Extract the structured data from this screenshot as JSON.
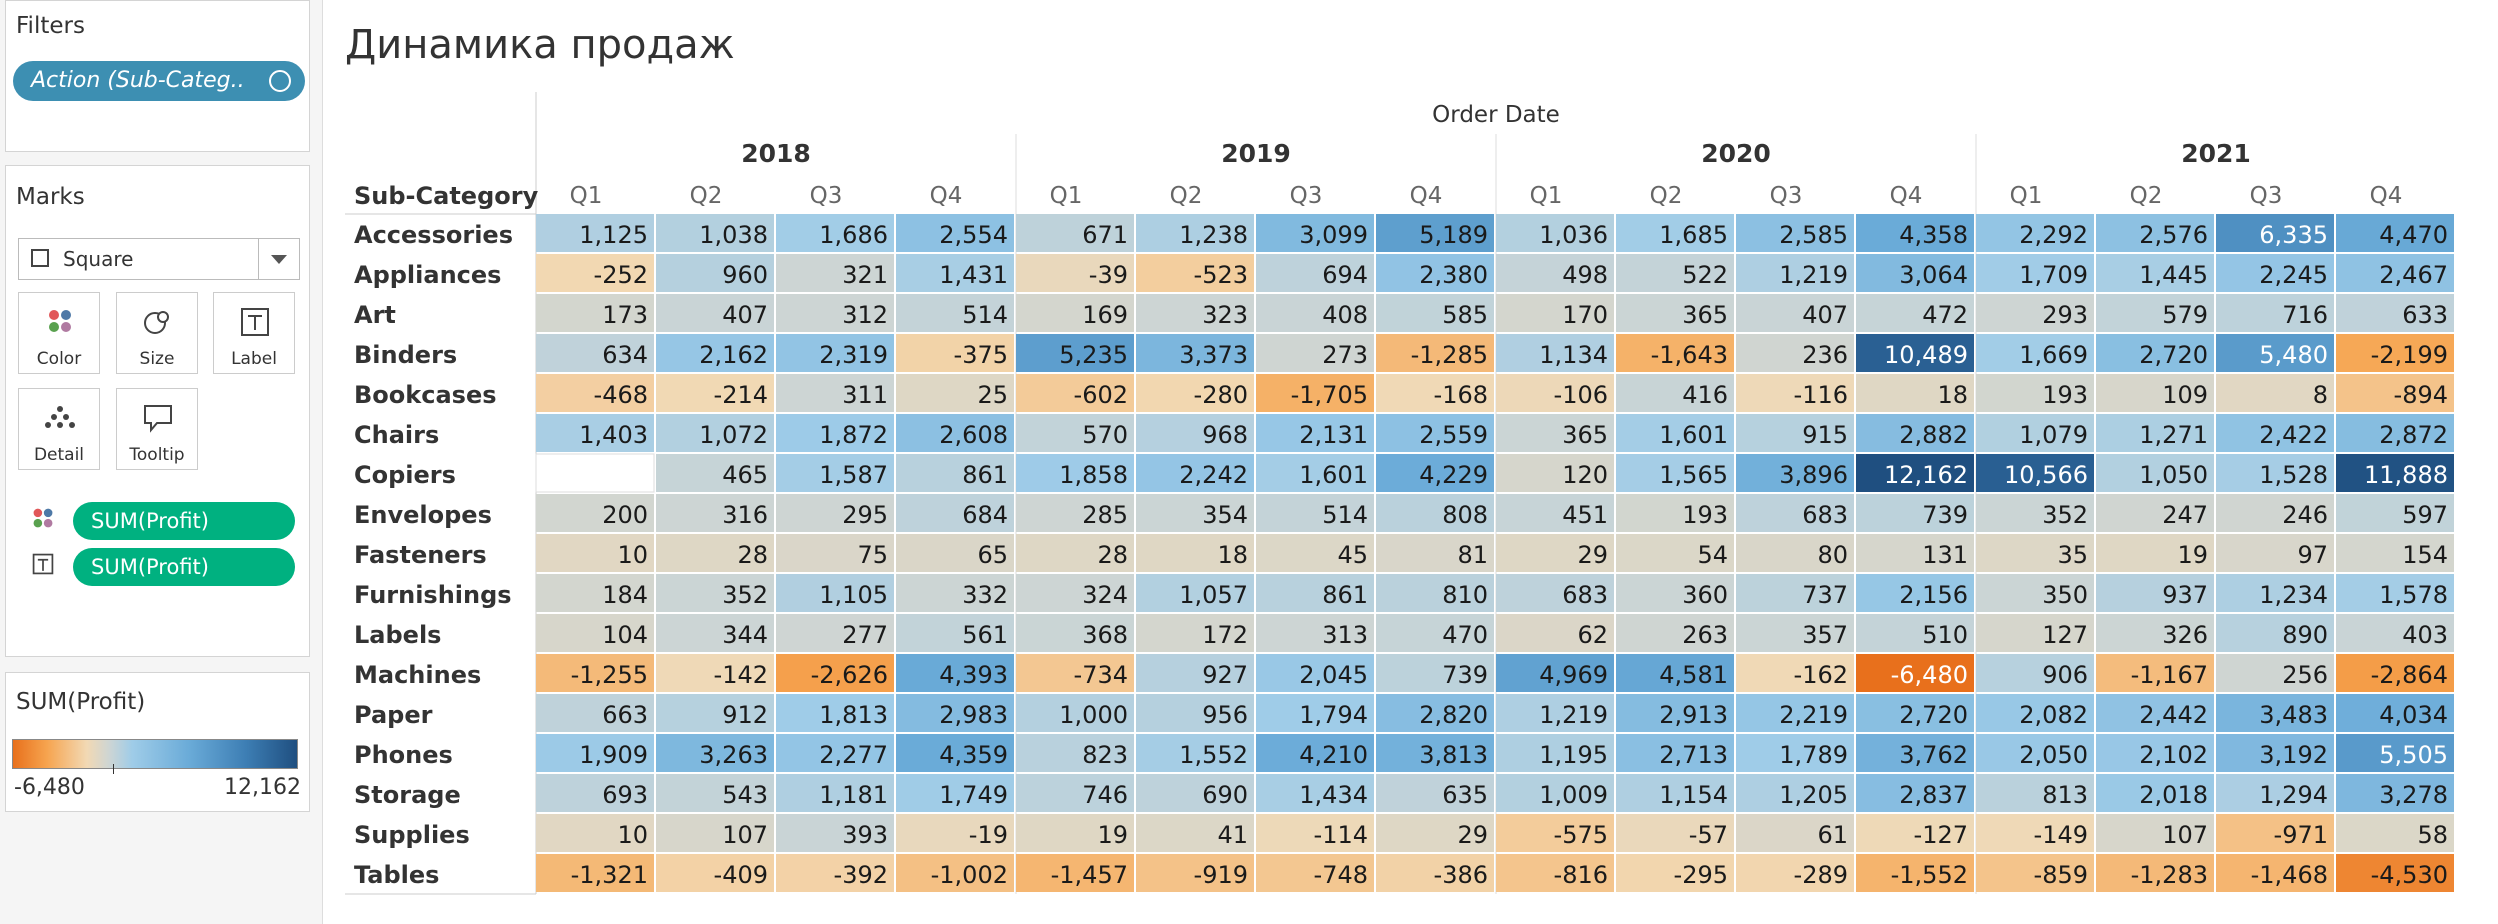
{
  "filters": {
    "title": "Filters",
    "pill": "Action (Sub-Categ.."
  },
  "marks": {
    "title": "Marks",
    "mark_type": "Square",
    "buttons": [
      "Color",
      "Size",
      "Label",
      "Detail",
      "Tooltip"
    ],
    "fields": [
      "SUM(Profit)",
      "SUM(Profit)"
    ]
  },
  "legend": {
    "title": "SUM(Profit)",
    "min": "-6,480",
    "max": "12,162",
    "colors": [
      "#e8701c",
      "#f6a44f",
      "#f2d9b4",
      "#cdd5d4",
      "#9fcce8",
      "#6aabd8",
      "#3d7eb4",
      "#1f4f80"
    ]
  },
  "sheet": {
    "title": "Динамика продаж"
  },
  "chart_data": {
    "type": "heatmap",
    "column_header": "Order Date",
    "row_header": "Sub-Category",
    "years": [
      "2018",
      "2019",
      "2020",
      "2021"
    ],
    "quarters": [
      "Q1",
      "Q2",
      "Q3",
      "Q4"
    ],
    "rows": [
      "Accessories",
      "Appliances",
      "Art",
      "Binders",
      "Bookcases",
      "Chairs",
      "Copiers",
      "Envelopes",
      "Fasteners",
      "Furnishings",
      "Labels",
      "Machines",
      "Paper",
      "Phones",
      "Storage",
      "Supplies",
      "Tables"
    ],
    "values": [
      [
        1125,
        1038,
        1686,
        2554,
        671,
        1238,
        3099,
        5189,
        1036,
        1685,
        2585,
        4358,
        2292,
        2576,
        6335,
        4470
      ],
      [
        -252,
        960,
        321,
        1431,
        -39,
        -523,
        694,
        2380,
        498,
        522,
        1219,
        3064,
        1709,
        1445,
        2245,
        2467
      ],
      [
        173,
        407,
        312,
        514,
        169,
        323,
        408,
        585,
        170,
        365,
        407,
        472,
        293,
        579,
        716,
        633
      ],
      [
        634,
        2162,
        2319,
        -375,
        5235,
        3373,
        273,
        -1285,
        1134,
        -1643,
        236,
        10489,
        1669,
        2720,
        5480,
        -2199
      ],
      [
        -468,
        -214,
        311,
        25,
        -602,
        -280,
        -1705,
        -168,
        -106,
        416,
        -116,
        18,
        193,
        109,
        8,
        -894
      ],
      [
        1403,
        1072,
        1872,
        2608,
        570,
        968,
        2131,
        2559,
        365,
        1601,
        915,
        2882,
        1079,
        1271,
        2422,
        2872
      ],
      [
        null,
        465,
        1587,
        861,
        1858,
        2242,
        1601,
        4229,
        120,
        1565,
        3896,
        12162,
        10566,
        1050,
        1528,
        11888
      ],
      [
        200,
        316,
        295,
        684,
        285,
        354,
        514,
        808,
        451,
        193,
        683,
        739,
        352,
        247,
        246,
        597
      ],
      [
        10,
        28,
        75,
        65,
        28,
        18,
        45,
        81,
        29,
        54,
        80,
        131,
        35,
        19,
        97,
        154
      ],
      [
        184,
        352,
        1105,
        332,
        324,
        1057,
        861,
        810,
        683,
        360,
        737,
        2156,
        350,
        937,
        1234,
        1578
      ],
      [
        104,
        344,
        277,
        561,
        368,
        172,
        313,
        470,
        62,
        263,
        357,
        510,
        127,
        326,
        890,
        403
      ],
      [
        -1255,
        -142,
        -2626,
        4393,
        -734,
        927,
        2045,
        739,
        4969,
        4581,
        -162,
        -6480,
        906,
        -1167,
        256,
        -2864
      ],
      [
        663,
        912,
        1813,
        2983,
        1000,
        956,
        1794,
        2820,
        1219,
        2913,
        2219,
        2720,
        2082,
        2442,
        3483,
        4034
      ],
      [
        1909,
        3263,
        2277,
        4359,
        823,
        1552,
        4210,
        3813,
        1195,
        2713,
        1789,
        3762,
        2050,
        2102,
        3192,
        5505
      ],
      [
        693,
        543,
        1181,
        1749,
        746,
        690,
        1434,
        635,
        1009,
        1154,
        1205,
        2837,
        813,
        2018,
        1294,
        3278
      ],
      [
        10,
        107,
        393,
        -19,
        19,
        41,
        -114,
        29,
        -575,
        -57,
        61,
        -127,
        -149,
        107,
        -971,
        58
      ],
      [
        -1321,
        -409,
        -392,
        -1002,
        -1457,
        -919,
        -748,
        -386,
        -816,
        -295,
        -289,
        -1552,
        -859,
        -1283,
        -1468,
        -4530
      ]
    ],
    "color_range": [
      -6480,
      12162
    ]
  }
}
